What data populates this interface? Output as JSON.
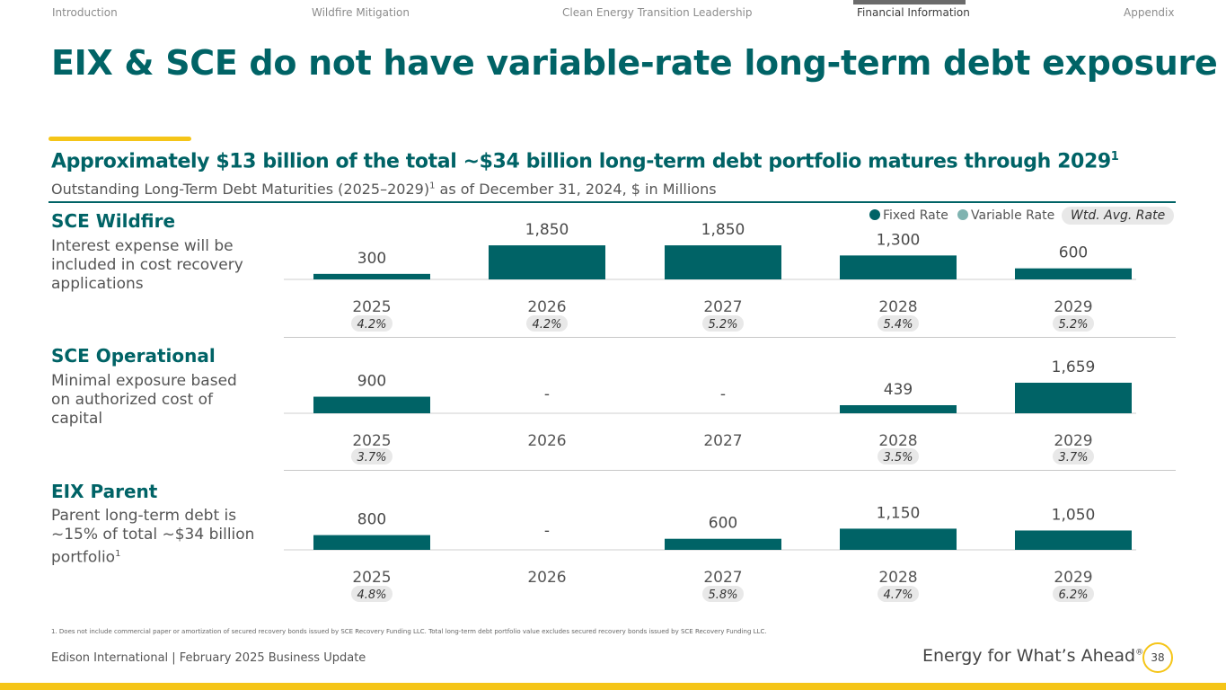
{
  "nav": {
    "items": [
      "Introduction",
      "Wildfire Mitigation",
      "Clean Energy Transition Leadership",
      "Financial Information",
      "Appendix"
    ],
    "active_index": 3
  },
  "title": "EIX & SCE do not have variable-rate long-term debt exposure",
  "subtitle": "Approximately $13 billion of the total ~$34 billion long-term debt portfolio matures through 2029",
  "subtitle_sup": "1",
  "subsubtitle_pre": "Outstanding Long-Term Debt Maturities (2025–2029)",
  "subsubtitle_sup": "1",
  "subsubtitle_post": " as of December 31, 2024, $ in Millions",
  "legend": {
    "fixed": "Fixed Rate",
    "variable": "Variable Rate",
    "wtd": "Wtd. Avg. Rate"
  },
  "sections": [
    {
      "title": "SCE Wildfire",
      "desc": "Interest expense will be included in cost recovery applications",
      "desc_sup": ""
    },
    {
      "title": "SCE Operational",
      "desc": "Minimal exposure based on authorized cost of capital",
      "desc_sup": ""
    },
    {
      "title": "EIX Parent",
      "desc": "Parent long-term debt is ~15% of total ~$34 billion portfolio",
      "desc_sup": "1"
    }
  ],
  "chart_data": [
    {
      "type": "bar",
      "title": "SCE Wildfire",
      "categories": [
        "2025",
        "2026",
        "2027",
        "2028",
        "2029"
      ],
      "values": [
        300,
        1850,
        1850,
        1300,
        600
      ],
      "labels": [
        "300",
        "1,850",
        "1,850",
        "1,300",
        "600"
      ],
      "rates": [
        "4.2%",
        "4.2%",
        "5.2%",
        "5.4%",
        "5.2%"
      ],
      "series": [
        {
          "name": "Fixed Rate",
          "values": [
            300,
            1850,
            1850,
            1300,
            600
          ]
        }
      ],
      "ylim": [
        0,
        2000
      ]
    },
    {
      "type": "bar",
      "title": "SCE Operational",
      "categories": [
        "2025",
        "2026",
        "2027",
        "2028",
        "2029"
      ],
      "values": [
        900,
        0,
        0,
        439,
        1659
      ],
      "labels": [
        "900",
        "-",
        "-",
        "439",
        "1,659"
      ],
      "rates": [
        "3.7%",
        "",
        "",
        "3.5%",
        "3.7%"
      ],
      "series": [
        {
          "name": "Fixed Rate",
          "values": [
            900,
            0,
            0,
            439,
            1659
          ]
        }
      ],
      "ylim": [
        0,
        2000
      ]
    },
    {
      "type": "bar",
      "title": "EIX Parent",
      "categories": [
        "2025",
        "2026",
        "2027",
        "2028",
        "2029"
      ],
      "values": [
        800,
        0,
        600,
        1150,
        1050
      ],
      "labels": [
        "800",
        "-",
        "600",
        "1,150",
        "1,050"
      ],
      "rates": [
        "4.8%",
        "",
        "5.8%",
        "4.7%",
        "6.2%"
      ],
      "series": [
        {
          "name": "Fixed Rate",
          "values": [
            800,
            0,
            600,
            1150,
            1050
          ]
        }
      ],
      "ylim": [
        0,
        2000
      ]
    }
  ],
  "colors": {
    "fixed": "#006366",
    "variable": "#7fb3b0",
    "accent": "#f5c518",
    "rate_pill": "#e8e8e8"
  },
  "footnote": "1.  Does not include commercial paper or amortization of secured recovery bonds issued by SCE Recovery Funding LLC. Total long-term debt portfolio value excludes secured recovery bonds issued by SCE Recovery Funding LLC.",
  "footer": {
    "left": "Edison International |  February 2025 Business Update",
    "right": "Energy for What’s Ahead",
    "right_sup": "®",
    "page_number": "38"
  }
}
